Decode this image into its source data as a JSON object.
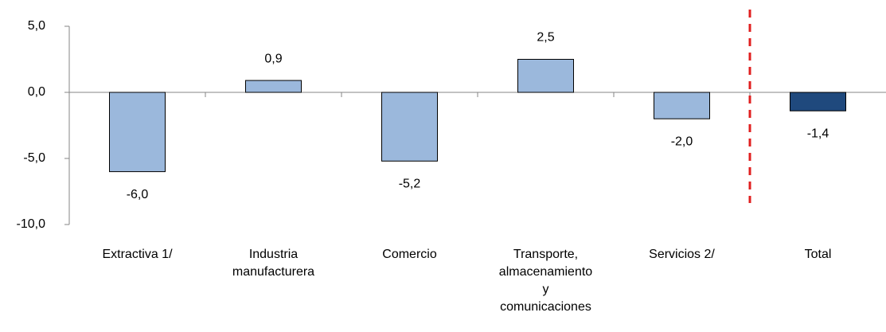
{
  "chart_data": {
    "type": "bar",
    "categories": [
      "Extractiva 1/",
      "Industria manufacturera",
      "Comercio",
      "Transporte, almacenamiento y comunicaciones",
      "Servicios 2/",
      "Total"
    ],
    "values": [
      -6.0,
      0.9,
      -5.2,
      2.5,
      -2.0,
      -1.4
    ],
    "value_labels": [
      "-6,0",
      "0,9",
      "-5,2",
      "2,5",
      "-2,0",
      "-1,4"
    ],
    "colors": [
      "#9bb8dc",
      "#9bb8dc",
      "#9bb8dc",
      "#9bb8dc",
      "#9bb8dc",
      "#1f497d"
    ],
    "ylim": [
      -10,
      5
    ],
    "yticks": [
      {
        "value": -10,
        "label": "-10,0"
      },
      {
        "value": -5,
        "label": "-5,0"
      },
      {
        "value": 0,
        "label": "0,0"
      },
      {
        "value": 5,
        "label": "5,0"
      }
    ],
    "grid": false
  }
}
